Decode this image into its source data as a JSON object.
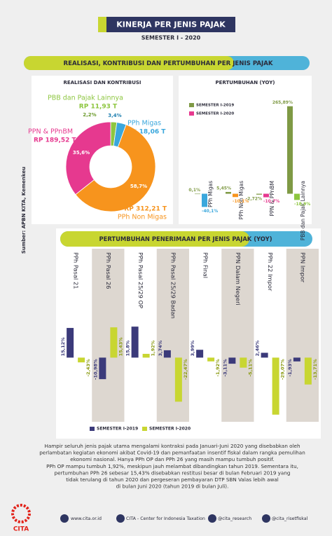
{
  "header": {
    "title": "KINERJA PER JENIS PAJAK",
    "subtitle": "SEMESTER I - 2020"
  },
  "section_1": {
    "title": "REALISASI, KONTRIBUSI DAN PERTUMBUHAN PER JENIS PAJAK"
  },
  "source": "Sumber: APBN KITA, Kemenkeu",
  "chart_data": [
    {
      "type": "pie",
      "title": "REALISASI DAN KONTRIBUSI",
      "categories": [
        "PBB dan Pajak Lainnya",
        "PPh Migas",
        "PPh Non Migas",
        "PPN & PPnBM"
      ],
      "values": [
        2.2,
        3.4,
        58.7,
        35.6
      ],
      "value_labels": [
        "2,2%",
        "3,4%",
        "58,7%",
        "35,6%"
      ],
      "amounts": [
        "RP 11,93 T",
        "RP 18,06 T",
        "RP 312,21 T",
        "RP 189,52 T"
      ],
      "colors": [
        "#8dc63f",
        "#3aa7dc",
        "#f7941d",
        "#e6398f"
      ]
    },
    {
      "type": "bar",
      "title": "PERTUMBUHAN (YOY)",
      "categories": [
        "PPh Migas",
        "PPh Non Migas",
        "PPN & PPnBM",
        "PBB dan Pajak Lainnya"
      ],
      "series": [
        {
          "name": "SEMESTER I-2019",
          "color": "#7f9a45",
          "values": [
            0.1,
            5.45,
            -2.72,
            265.89
          ],
          "value_labels": [
            "0,1%",
            "5,45%",
            "-2,72%",
            "265,89%"
          ]
        },
        {
          "name": "SEMESTER I-2020",
          "color": "#e6398f",
          "colors": [
            "#3aa7dc",
            "#f7941d",
            "#e6398f",
            "#8dc63f"
          ],
          "values": [
            -40.1,
            -10.1,
            -10.7,
            -18.9
          ],
          "value_labels": [
            "-40,1%",
            "-10,1%",
            "-10,7%",
            "-18,9%"
          ]
        }
      ],
      "ylim": [
        -50,
        280
      ]
    },
    {
      "type": "bar",
      "title": "PERTUMBUHAN PENERIMAAN PER JENIS PAJAK (YOY)",
      "categories": [
        "PPh Pasal 21",
        "PPh Pasal 26",
        "PPh Pasal 25/29 OP",
        "PPh Pasal 25/29 Badan",
        "PPh Final",
        "PPN Dalam Negeri",
        "PPh 22 Impor",
        "PPN Impor"
      ],
      "series": [
        {
          "name": "SEMESTER I-2019",
          "color": "#3b3a7a",
          "values": [
            15.12,
            -10.98,
            15.8,
            3.74,
            3.99,
            -3.11,
            2.46,
            -1.93
          ],
          "value_labels": [
            "15,12%",
            "-10,98%",
            "15,8%",
            "3,74%",
            "3,99%",
            "-3,11%",
            "2,46%",
            "-1,93%"
          ]
        },
        {
          "name": "SEMESTER I-2020",
          "color": "#c8d631",
          "values": [
            -2.43,
            15.43,
            1.92,
            -22.47,
            -1.92,
            -5.11,
            -29.07,
            -13.71
          ],
          "value_labels": [
            "-2,43%",
            "15,43%",
            "1,92%",
            "-22,47%",
            "-1,92%",
            "-5,11%",
            "-29,07%",
            "-13,71%"
          ]
        }
      ],
      "ylim": [
        -32,
        18
      ]
    }
  ],
  "paragraph": {
    "lines": [
      "Hampir seluruh jenis pajak utama mengalami kontraksi pada Januari-Juni 2020  yang disebabkan oleh",
      "perlambatan kegiatan ekonomi akibat Covid-19 dan pemanfaatan insentif fiskal  dalam rangka pemulihan",
      "ekonomi nasional. Hanya PPh OP dan PPh 26 yang masih mampu tumbuh positif.",
      "PPh OP mampu tumbuh 1,92%, meskipun jauh melambat dibandingkan tahun 2019. Sementara itu,",
      "pertumbuhan PPh 26 sebesar 15,43% disebabkan restitusi besar di bulan Februari 2019 yang",
      "tidak terulang di tahun 2020 dan pergeseran pembayaran DTP SBN Valas lebih awal",
      "di bulan Juni 2020 (tahun 2019 di bulan Juli)."
    ]
  },
  "footer": {
    "logo": "CITA",
    "website": "www.cita.or.id",
    "facebook": "CITA - Center for Indonesia Taxation",
    "twitter": "@cita_research",
    "instagram": "@cita_risetfiskal"
  }
}
